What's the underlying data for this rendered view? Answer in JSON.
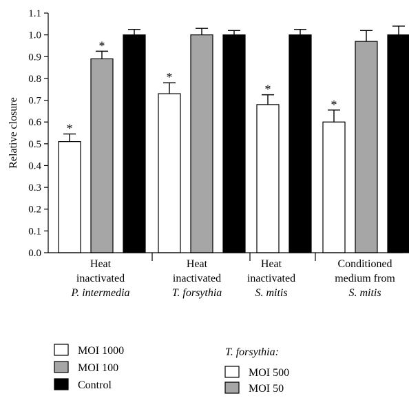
{
  "chart_data": {
    "type": "bar",
    "ylabel": "Relative closure",
    "ylim": [
      0.0,
      1.1
    ],
    "yticks": [
      "0.0",
      "0.1",
      "0.2",
      "0.3",
      "0.4",
      "0.5",
      "0.6",
      "0.7",
      "0.8",
      "0.9",
      "1.0",
      "1.1"
    ],
    "groups": [
      {
        "label_lines": [
          {
            "text": "Heat",
            "italic": false
          },
          {
            "text": "inactivated",
            "italic": false
          },
          {
            "text": "P. intermedia",
            "italic": true
          }
        ],
        "bars": [
          {
            "fill": "white",
            "value": 0.51,
            "error": 0.035,
            "star": "*"
          },
          {
            "fill": "gray",
            "value": 0.89,
            "error": 0.035,
            "star": "*"
          },
          {
            "fill": "black",
            "value": 1.0,
            "error": 0.025,
            "star": ""
          }
        ]
      },
      {
        "label_lines": [
          {
            "text": "Heat",
            "italic": false
          },
          {
            "text": "inactivated",
            "italic": false
          },
          {
            "text": "T. forsythia",
            "italic": true
          }
        ],
        "bars": [
          {
            "fill": "white",
            "value": 0.73,
            "error": 0.05,
            "star": "*"
          },
          {
            "fill": "gray",
            "value": 1.0,
            "error": 0.03,
            "star": ""
          },
          {
            "fill": "black",
            "value": 1.0,
            "error": 0.02,
            "star": ""
          }
        ]
      },
      {
        "label_lines": [
          {
            "text": "Heat",
            "italic": false
          },
          {
            "text": "inactivated",
            "italic": false
          },
          {
            "text": "S. mitis",
            "italic": true
          }
        ],
        "bars": [
          {
            "fill": "white",
            "value": 0.68,
            "error": 0.045,
            "star": "*"
          },
          {
            "fill": "black",
            "value": 1.0,
            "error": 0.025,
            "star": ""
          }
        ]
      },
      {
        "label_lines": [
          {
            "text": "Conditioned",
            "italic": false
          },
          {
            "text": "medium from",
            "italic": false
          },
          {
            "text": "S. mitis",
            "italic": true
          }
        ],
        "bars": [
          {
            "fill": "white",
            "value": 0.6,
            "error": 0.055,
            "star": "*"
          },
          {
            "fill": "gray",
            "value": 0.97,
            "error": 0.05,
            "star": ""
          },
          {
            "fill": "black",
            "value": 1.0,
            "error": 0.04,
            "star": ""
          }
        ]
      }
    ],
    "colors": {
      "white": "#ffffff",
      "gray": "#a6a6a6",
      "black": "#000000"
    },
    "legend_left": [
      {
        "fill": "white",
        "label": "MOI 1000"
      },
      {
        "fill": "gray",
        "label": "MOI 100"
      },
      {
        "fill": "black",
        "label": "Control"
      }
    ],
    "legend_right_title": "T. forsythia:",
    "legend_right": [
      {
        "fill": "white",
        "label": "MOI 500"
      },
      {
        "fill": "gray",
        "label": "MOI 50"
      }
    ]
  }
}
